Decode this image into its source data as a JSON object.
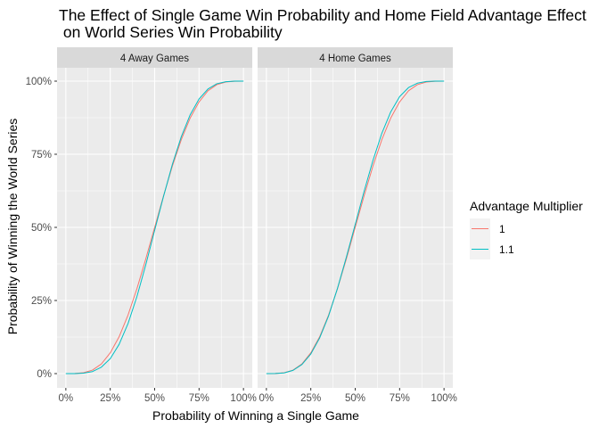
{
  "title_line1": "The Effect of Single Game Win Probability and Home Field Advantage Effect",
  "title_line2": " on World Series Win Probability",
  "chart_data": {
    "type": "line",
    "xlabel": "Probability of Winning a Single Game",
    "ylabel": "Probability of Winning the World Series",
    "xlim": [
      0,
      1
    ],
    "ylim": [
      0,
      1
    ],
    "x_ticks": [
      "0%",
      "25%",
      "50%",
      "75%",
      "100%"
    ],
    "y_ticks": [
      "0%",
      "25%",
      "50%",
      "75%",
      "100%"
    ],
    "grid": true,
    "legend": {
      "title": "Advantage Multiplier",
      "position": "right",
      "entries": [
        {
          "label": "1",
          "color": "#F8766D"
        },
        {
          "label": "1.1",
          "color": "#00BFC4"
        }
      ]
    },
    "panels": [
      {
        "label": "4 Away Games",
        "series": [
          {
            "name": "1",
            "color": "#F8766D",
            "x": [
              0,
              0.05,
              0.1,
              0.15,
              0.2,
              0.25,
              0.3,
              0.35,
              0.4,
              0.45,
              0.5,
              0.55,
              0.6,
              0.65,
              0.7,
              0.75,
              0.8,
              0.85,
              0.9,
              0.95,
              1
            ],
            "y": [
              0,
              0.0002,
              0.003,
              0.012,
              0.033,
              0.071,
              0.126,
              0.2,
              0.29,
              0.392,
              0.5,
              0.608,
              0.71,
              0.8,
              0.874,
              0.929,
              0.967,
              0.988,
              0.997,
              0.9998,
              1
            ]
          },
          {
            "name": "1.1",
            "color": "#00BFC4",
            "x": [
              0,
              0.05,
              0.1,
              0.15,
              0.2,
              0.25,
              0.3,
              0.35,
              0.4,
              0.45,
              0.5,
              0.55,
              0.6,
              0.65,
              0.7,
              0.75,
              0.8,
              0.85,
              0.9,
              0.95,
              1
            ],
            "y": [
              0,
              0.0001,
              0.0014,
              0.007,
              0.022,
              0.051,
              0.1,
              0.171,
              0.263,
              0.372,
              0.49,
              0.606,
              0.716,
              0.81,
              0.885,
              0.939,
              0.973,
              0.991,
              0.998,
              1.0,
              1
            ]
          }
        ]
      },
      {
        "label": "4 Home Games",
        "series": [
          {
            "name": "1",
            "color": "#F8766D",
            "x": [
              0,
              0.05,
              0.1,
              0.15,
              0.2,
              0.25,
              0.3,
              0.35,
              0.4,
              0.45,
              0.5,
              0.55,
              0.6,
              0.65,
              0.7,
              0.75,
              0.8,
              0.85,
              0.9,
              0.95,
              1
            ],
            "y": [
              0,
              0.0002,
              0.003,
              0.012,
              0.033,
              0.071,
              0.126,
              0.2,
              0.29,
              0.392,
              0.5,
              0.608,
              0.71,
              0.8,
              0.874,
              0.929,
              0.967,
              0.988,
              0.997,
              0.9998,
              1
            ]
          },
          {
            "name": "1.1",
            "color": "#00BFC4",
            "x": [
              0,
              0.05,
              0.1,
              0.15,
              0.2,
              0.25,
              0.3,
              0.35,
              0.4,
              0.45,
              0.5,
              0.55,
              0.6,
              0.65,
              0.7,
              0.75,
              0.8,
              0.85,
              0.9,
              0.95,
              1
            ],
            "y": [
              0,
              0.0002,
              0.0022,
              0.011,
              0.031,
              0.067,
              0.122,
              0.197,
              0.291,
              0.398,
              0.51,
              0.623,
              0.729,
              0.822,
              0.895,
              0.947,
              0.978,
              0.993,
              0.999,
              1.0,
              1
            ]
          }
        ]
      }
    ]
  }
}
